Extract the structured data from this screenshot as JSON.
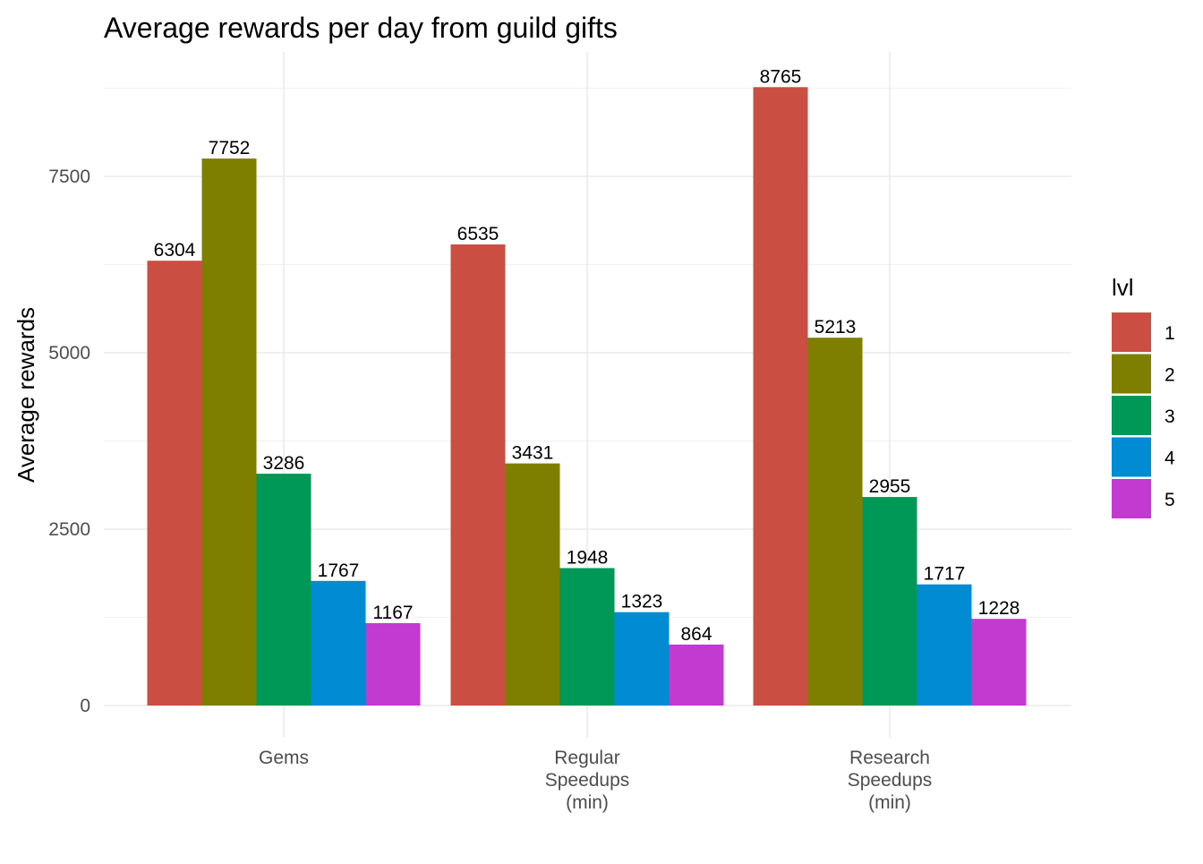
{
  "chart_data": {
    "type": "bar",
    "title": "Average rewards per day from guild gifts",
    "xlabel": "",
    "ylabel": "Average rewards",
    "categories": [
      [
        "Gems"
      ],
      [
        "Regular",
        "Speedups",
        "(min)"
      ],
      [
        "Research",
        "Speedups",
        "(min)"
      ]
    ],
    "series": [
      {
        "name": "1",
        "color": "#CB4E43",
        "values": [
          6304,
          6535,
          8765
        ]
      },
      {
        "name": "2",
        "color": "#7E7E00",
        "values": [
          7752,
          3431,
          5213
        ]
      },
      {
        "name": "3",
        "color": "#009856",
        "values": [
          3286,
          1948,
          2955
        ]
      },
      {
        "name": "4",
        "color": "#008BD2",
        "values": [
          1767,
          1323,
          1717
        ]
      },
      {
        "name": "5",
        "color": "#C23ACF",
        "values": [
          1167,
          864,
          1228
        ]
      }
    ],
    "ylim": [
      0,
      9000
    ],
    "yticks": [
      0,
      2500,
      5000,
      7500
    ],
    "grid": true,
    "legend": {
      "title": "lvl",
      "position": "right"
    }
  }
}
